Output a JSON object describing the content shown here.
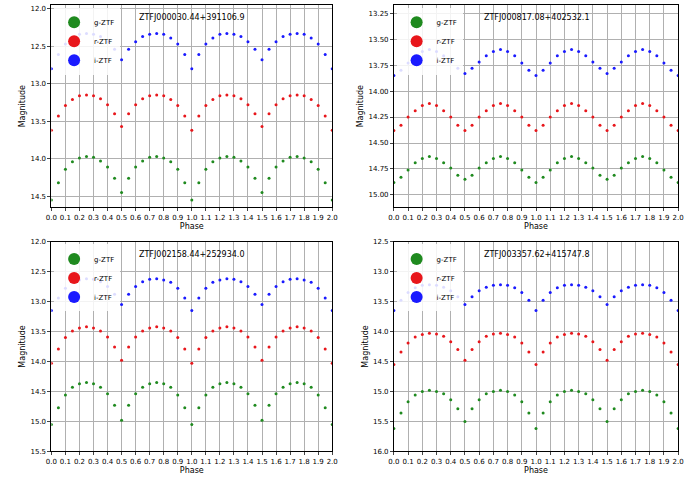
{
  "chart_data": [
    {
      "type": "scatter",
      "title": "ZTFJ000030.44+391106.9",
      "x_label": "Phase",
      "y_label": "Magnitude",
      "x": [
        0,
        0.05,
        0.1,
        0.15,
        0.2,
        0.25,
        0.3,
        0.35,
        0.4,
        0.45,
        0.5,
        0.55,
        0.6,
        0.65,
        0.7,
        0.75,
        0.8,
        0.85,
        0.9,
        0.95,
        1,
        1.05,
        1.1,
        1.15,
        1.2,
        1.25,
        1.3,
        1.35,
        1.4,
        1.45,
        1.5,
        1.55,
        1.6,
        1.65,
        1.7,
        1.75,
        1.8,
        1.85,
        1.9,
        1.95,
        2
      ],
      "series": [
        {
          "name": "g-ZTF",
          "color": "#1f8a1f",
          "values": [
            14.55,
            14.32,
            14.14,
            14.04,
            13.99,
            13.97,
            13.98,
            14.03,
            14.11,
            14.26,
            14.45,
            14.26,
            14.11,
            14.03,
            13.98,
            13.97,
            13.99,
            14.04,
            14.14,
            14.32,
            14.55,
            14.32,
            14.14,
            14.04,
            13.99,
            13.97,
            13.98,
            14.03,
            14.11,
            14.26,
            14.45,
            14.26,
            14.11,
            14.03,
            13.98,
            13.97,
            13.99,
            14.04,
            14.14,
            14.32,
            14.55
          ]
        },
        {
          "name": "r-ZTF",
          "color": "#e8161b",
          "values": [
            13.62,
            13.43,
            13.29,
            13.21,
            13.16,
            13.15,
            13.16,
            13.2,
            13.28,
            13.4,
            13.57,
            13.4,
            13.28,
            13.2,
            13.16,
            13.15,
            13.16,
            13.21,
            13.29,
            13.43,
            13.62,
            13.43,
            13.29,
            13.21,
            13.16,
            13.15,
            13.16,
            13.2,
            13.28,
            13.4,
            13.57,
            13.4,
            13.28,
            13.2,
            13.16,
            13.15,
            13.16,
            13.21,
            13.29,
            13.43,
            13.62
          ]
        },
        {
          "name": "i-ZTF",
          "color": "#1a1aff",
          "values": [
            12.8,
            12.61,
            12.47,
            12.39,
            12.34,
            12.33,
            12.34,
            12.37,
            12.44,
            12.54,
            12.68,
            12.54,
            12.44,
            12.37,
            12.34,
            12.33,
            12.34,
            12.39,
            12.47,
            12.61,
            12.8,
            12.61,
            12.47,
            12.39,
            12.34,
            12.33,
            12.34,
            12.37,
            12.44,
            12.54,
            12.68,
            12.54,
            12.44,
            12.37,
            12.34,
            12.33,
            12.34,
            12.39,
            12.47,
            12.61,
            12.8
          ]
        }
      ],
      "xlim": [
        0,
        2
      ],
      "xticks": [
        {
          "value": 0,
          "label": "0.0"
        },
        0.1,
        0.2,
        0.3,
        0.4,
        0.5,
        0.6,
        0.7,
        0.8,
        0.9,
        {
          "value": 1,
          "label": "1.0"
        },
        1.1,
        1.2,
        1.3,
        1.4,
        1.5,
        1.6,
        1.7,
        1.8,
        1.9,
        {
          "value": 2,
          "label": "2.0"
        }
      ],
      "ylim": [
        14.65,
        11.95
      ],
      "yticks": [
        {
          "value": 12,
          "label": "12.0"
        },
        12.5,
        {
          "value": 13,
          "label": "13.0"
        },
        13.5,
        {
          "value": 14,
          "label": "14.0"
        },
        14.5
      ],
      "grid": true,
      "legend": "upper left",
      "marker": "circle"
    },
    {
      "type": "scatter",
      "title": "ZTFJ000817.08+402532.1",
      "x_label": "Phase",
      "y_label": "Magnitude",
      "x": [
        0,
        0.05,
        0.1,
        0.15,
        0.2,
        0.25,
        0.3,
        0.35,
        0.4,
        0.45,
        0.5,
        0.55,
        0.6,
        0.65,
        0.7,
        0.75,
        0.8,
        0.85,
        0.9,
        0.95,
        1,
        1.05,
        1.1,
        1.15,
        1.2,
        1.25,
        1.3,
        1.35,
        1.4,
        1.45,
        1.5,
        1.55,
        1.6,
        1.65,
        1.7,
        1.75,
        1.8,
        1.85,
        1.9,
        1.95,
        2
      ],
      "series": [
        {
          "name": "g-ZTF",
          "color": "#1f8a1f",
          "values": [
            14.88,
            14.83,
            14.76,
            14.69,
            14.65,
            14.63,
            14.65,
            14.69,
            14.74,
            14.81,
            14.85,
            14.81,
            14.74,
            14.69,
            14.65,
            14.63,
            14.65,
            14.69,
            14.76,
            14.83,
            14.88,
            14.83,
            14.76,
            14.69,
            14.65,
            14.63,
            14.65,
            14.69,
            14.74,
            14.81,
            14.85,
            14.81,
            14.74,
            14.69,
            14.65,
            14.63,
            14.65,
            14.69,
            14.76,
            14.83,
            14.88
          ]
        },
        {
          "name": "r-ZTF",
          "color": "#e8161b",
          "values": [
            14.38,
            14.33,
            14.25,
            14.19,
            14.14,
            14.12,
            14.14,
            14.19,
            14.25,
            14.33,
            14.38,
            14.33,
            14.25,
            14.19,
            14.14,
            14.12,
            14.14,
            14.19,
            14.25,
            14.33,
            14.38,
            14.33,
            14.25,
            14.19,
            14.14,
            14.12,
            14.14,
            14.19,
            14.25,
            14.33,
            14.38,
            14.33,
            14.25,
            14.19,
            14.14,
            14.12,
            14.14,
            14.19,
            14.25,
            14.33,
            14.38
          ]
        },
        {
          "name": "i-ZTF",
          "color": "#1a1aff",
          "values": [
            13.85,
            13.8,
            13.73,
            13.66,
            13.62,
            13.6,
            13.62,
            13.66,
            13.72,
            13.78,
            13.83,
            13.78,
            13.72,
            13.66,
            13.62,
            13.6,
            13.62,
            13.66,
            13.73,
            13.8,
            13.85,
            13.8,
            13.73,
            13.66,
            13.62,
            13.6,
            13.62,
            13.66,
            13.72,
            13.78,
            13.83,
            13.78,
            13.72,
            13.66,
            13.62,
            13.6,
            13.62,
            13.66,
            13.73,
            13.8,
            13.85
          ]
        }
      ],
      "xlim": [
        0,
        2
      ],
      "xticks": [
        {
          "value": 0,
          "label": "0.0"
        },
        0.1,
        0.2,
        0.3,
        0.4,
        0.5,
        0.6,
        0.7,
        0.8,
        0.9,
        {
          "value": 1,
          "label": "1.0"
        },
        1.1,
        1.2,
        1.3,
        1.4,
        1.5,
        1.6,
        1.7,
        1.8,
        1.9,
        {
          "value": 2,
          "label": "2.0"
        }
      ],
      "ylim": [
        15.12,
        13.17
      ],
      "yticks": [
        13.25,
        {
          "value": 13.5,
          "label": "13.50"
        },
        13.75,
        {
          "value": 14,
          "label": "14.00"
        },
        14.25,
        {
          "value": 14.5,
          "label": "14.50"
        },
        14.75,
        {
          "value": 15,
          "label": "15.00"
        }
      ],
      "grid": true,
      "legend": "upper left",
      "marker": "circle"
    },
    {
      "type": "scatter",
      "title": "ZTFJ002158.44+252934.0",
      "x_label": "Phase",
      "y_label": "Magnitude",
      "x": [
        0,
        0.05,
        0.1,
        0.15,
        0.2,
        0.25,
        0.3,
        0.35,
        0.4,
        0.45,
        0.5,
        0.55,
        0.6,
        0.65,
        0.7,
        0.75,
        0.8,
        0.85,
        0.9,
        0.95,
        1,
        1.05,
        1.1,
        1.15,
        1.2,
        1.25,
        1.3,
        1.35,
        1.4,
        1.45,
        1.5,
        1.55,
        1.6,
        1.65,
        1.7,
        1.75,
        1.8,
        1.85,
        1.9,
        1.95,
        2
      ],
      "series": [
        {
          "name": "g-ZTF",
          "color": "#1f8a1f",
          "values": [
            15.05,
            14.77,
            14.56,
            14.43,
            14.37,
            14.35,
            14.37,
            14.43,
            14.54,
            14.73,
            14.98,
            14.73,
            14.54,
            14.43,
            14.37,
            14.35,
            14.37,
            14.43,
            14.56,
            14.77,
            15.05,
            14.77,
            14.56,
            14.43,
            14.37,
            14.35,
            14.37,
            14.43,
            14.54,
            14.73,
            14.98,
            14.73,
            14.54,
            14.43,
            14.37,
            14.35,
            14.37,
            14.43,
            14.56,
            14.77,
            15.05
          ]
        },
        {
          "name": "r-ZTF",
          "color": "#e8161b",
          "values": [
            14.03,
            13.79,
            13.6,
            13.49,
            13.44,
            13.42,
            13.44,
            13.49,
            13.59,
            13.76,
            13.98,
            13.76,
            13.59,
            13.49,
            13.44,
            13.42,
            13.44,
            13.49,
            13.6,
            13.79,
            14.03,
            13.79,
            13.6,
            13.49,
            13.44,
            13.42,
            13.44,
            13.49,
            13.59,
            13.76,
            13.98,
            13.76,
            13.59,
            13.49,
            13.44,
            13.42,
            13.44,
            13.49,
            13.6,
            13.79,
            14.03
          ]
        },
        {
          "name": "i-ZTF",
          "color": "#1a1aff",
          "values": [
            13.15,
            12.94,
            12.78,
            12.68,
            12.64,
            12.62,
            12.63,
            12.67,
            12.75,
            12.88,
            13.05,
            12.88,
            12.75,
            12.67,
            12.63,
            12.62,
            12.64,
            12.68,
            12.78,
            12.94,
            13.15,
            12.94,
            12.78,
            12.68,
            12.64,
            12.62,
            12.63,
            12.67,
            12.75,
            12.88,
            13.05,
            12.88,
            12.75,
            12.67,
            12.63,
            12.62,
            12.64,
            12.68,
            12.78,
            12.94,
            13.15
          ]
        }
      ],
      "xlim": [
        0,
        2
      ],
      "xticks": [
        {
          "value": 0,
          "label": "0.0"
        },
        0.1,
        0.2,
        0.3,
        0.4,
        0.5,
        0.6,
        0.7,
        0.8,
        0.9,
        {
          "value": 1,
          "label": "1.0"
        },
        1.1,
        1.2,
        1.3,
        1.4,
        1.5,
        1.6,
        1.7,
        1.8,
        1.9,
        {
          "value": 2,
          "label": "2.0"
        }
      ],
      "ylim": [
        15.5,
        12.0
      ],
      "yticks": [
        {
          "value": 12,
          "label": "12.0"
        },
        12.5,
        {
          "value": 13,
          "label": "13.0"
        },
        13.5,
        {
          "value": 14,
          "label": "14.0"
        },
        14.5,
        {
          "value": 15,
          "label": "15.0"
        },
        15.5
      ],
      "grid": true,
      "legend": "upper left",
      "marker": "circle"
    },
    {
      "type": "scatter",
      "title": "ZTFJ003357.62+415747.8",
      "x_label": "Phase",
      "y_label": "Magnitude",
      "x": [
        0,
        0.05,
        0.1,
        0.15,
        0.2,
        0.25,
        0.3,
        0.35,
        0.4,
        0.45,
        0.5,
        0.55,
        0.6,
        0.65,
        0.7,
        0.75,
        0.8,
        0.85,
        0.9,
        0.95,
        1,
        1.05,
        1.1,
        1.15,
        1.2,
        1.25,
        1.3,
        1.35,
        1.4,
        1.45,
        1.5,
        1.55,
        1.6,
        1.65,
        1.7,
        1.75,
        1.8,
        1.85,
        1.9,
        1.95,
        2
      ],
      "series": [
        {
          "name": "g-ZTF",
          "color": "#1f8a1f",
          "values": [
            15.62,
            15.36,
            15.17,
            15.06,
            15.0,
            14.98,
            15.0,
            15.04,
            15.14,
            15.29,
            15.5,
            15.29,
            15.14,
            15.04,
            15.0,
            14.98,
            15.0,
            15.06,
            15.17,
            15.36,
            15.62,
            15.36,
            15.17,
            15.06,
            15.0,
            14.98,
            15.0,
            15.04,
            15.14,
            15.29,
            15.5,
            15.29,
            15.14,
            15.04,
            15.0,
            14.98,
            15.0,
            15.06,
            15.17,
            15.36,
            15.62
          ]
        },
        {
          "name": "r-ZTF",
          "color": "#e8161b",
          "values": [
            14.55,
            14.34,
            14.19,
            14.09,
            14.05,
            14.03,
            14.04,
            14.08,
            14.17,
            14.3,
            14.48,
            14.3,
            14.17,
            14.08,
            14.04,
            14.03,
            14.05,
            14.09,
            14.19,
            14.34,
            14.55,
            14.34,
            14.19,
            14.09,
            14.05,
            14.03,
            14.04,
            14.08,
            14.17,
            14.3,
            14.48,
            14.3,
            14.17,
            14.08,
            14.04,
            14.03,
            14.05,
            14.09,
            14.19,
            14.34,
            14.55
          ]
        },
        {
          "name": "i-ZTF",
          "color": "#1a1aff",
          "values": [
            13.65,
            13.48,
            13.35,
            13.27,
            13.23,
            13.22,
            13.23,
            13.26,
            13.32,
            13.42,
            13.55,
            13.42,
            13.32,
            13.26,
            13.23,
            13.22,
            13.23,
            13.27,
            13.35,
            13.48,
            13.65,
            13.48,
            13.35,
            13.27,
            13.23,
            13.22,
            13.23,
            13.26,
            13.32,
            13.42,
            13.55,
            13.42,
            13.32,
            13.26,
            13.23,
            13.22,
            13.23,
            13.27,
            13.35,
            13.48,
            13.65
          ]
        }
      ],
      "xlim": [
        0,
        2
      ],
      "xticks": [
        {
          "value": 0,
          "label": "0.0"
        },
        0.1,
        0.2,
        0.3,
        0.4,
        0.5,
        0.6,
        0.7,
        0.8,
        0.9,
        {
          "value": 1,
          "label": "1.0"
        },
        1.1,
        1.2,
        1.3,
        1.4,
        1.5,
        1.6,
        1.7,
        1.8,
        1.9,
        {
          "value": 2,
          "label": "2.0"
        }
      ],
      "ylim": [
        16.0,
        12.5
      ],
      "yticks": [
        12.5,
        {
          "value": 13,
          "label": "13.0"
        },
        13.5,
        {
          "value": 14,
          "label": "14.0"
        },
        14.5,
        {
          "value": 15,
          "label": "15.0"
        },
        15.5,
        {
          "value": 16,
          "label": "16.0"
        }
      ],
      "grid": true,
      "legend": "upper left",
      "marker": "circle"
    }
  ]
}
